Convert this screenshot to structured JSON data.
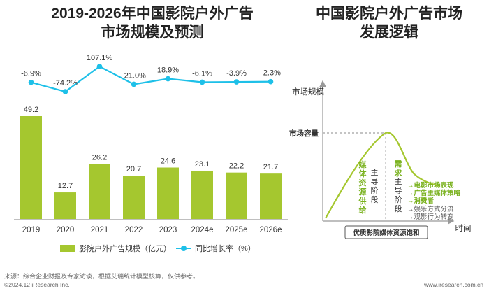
{
  "left_title": [
    "2019-2026年中国影院户外广告",
    "市场规模及预测"
  ],
  "right_title": [
    "中国影院户外广告市场",
    "发展逻辑"
  ],
  "chart_data": [
    {
      "type": "bar+line",
      "categories": [
        "2019",
        "2020",
        "2021",
        "2022",
        "2023",
        "2024e",
        "2025e",
        "2026e"
      ],
      "series": [
        {
          "name": "影院户外广告规模（亿元）",
          "type": "bar",
          "values": [
            49.2,
            12.7,
            26.2,
            20.7,
            24.6,
            23.1,
            22.2,
            21.7
          ],
          "labels": [
            "49.2",
            "12.7",
            "26.2",
            "20.7",
            "24.6",
            "23.1",
            "22.2",
            "21.7"
          ],
          "color": "#a5c72f"
        },
        {
          "name": "同比增长率（%）",
          "type": "line",
          "values": [
            -6.9,
            -74.2,
            107.1,
            -21.0,
            18.9,
            -6.1,
            -3.9,
            -2.3
          ],
          "labels": [
            "-6.9%",
            "-74.2%",
            "107.1%",
            "-21.0%",
            "18.9%",
            "-6.1%",
            "-3.9%",
            "-2.3%"
          ],
          "color": "#1ec0e8"
        }
      ],
      "title": "2019-2026年中国影院户外广告市场规模及预测"
    },
    {
      "type": "diagram",
      "title": "中国影院户外广告市场发展逻辑",
      "y_axis_label": "市场规模",
      "x_axis_label": "时间",
      "capacity_label": "市场容量",
      "phase1": {
        "label_chars": [
          "媒",
          "体",
          "资",
          "源",
          "供",
          "给"
        ],
        "note_chars": [
          "主",
          "导",
          "阶",
          "段"
        ]
      },
      "phase2": {
        "label_chars": [
          "需",
          "求"
        ],
        "note_chars": [
          "主",
          "导",
          "阶",
          "段"
        ]
      },
      "drivers": [
        "电影市场表现",
        "广告主媒体策略",
        "消费者"
      ],
      "gray_drivers": [
        "娱乐方式分流",
        "观影行为转变"
      ],
      "bottom_box": "优质影院媒体资源饱和"
    }
  ],
  "footer": {
    "source": "来源：综合企业财报及专家访谈，根据艾瑞统计模型核算，仅供参考。",
    "copyright": "©2024.12 iResearch Inc.",
    "website": "www.iresearch.com.cn"
  },
  "colors": {
    "bar": "#a5c72f",
    "line": "#1ec0e8",
    "green_text": "#7ab21f"
  }
}
